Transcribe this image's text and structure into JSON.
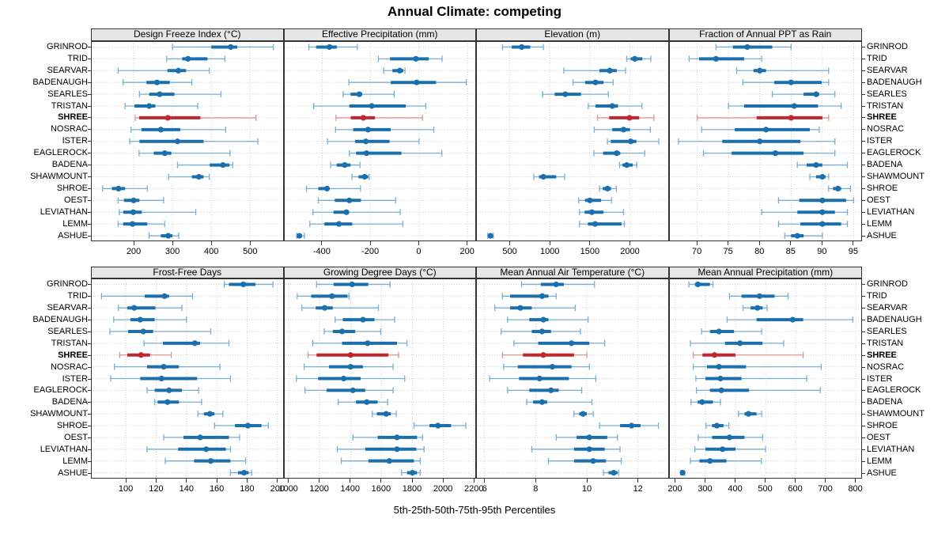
{
  "title": "Annual Climate: competing",
  "footer": "5th-25th-50th-75th-95th Percentiles",
  "colors": {
    "blue": "#1c6fad",
    "blue_light": "#79aed2",
    "red": "#c0282d",
    "red_light": "#dd9595",
    "grid": "#cfcfcf",
    "strip_bg": "#e6e6e6",
    "border": "#333333"
  },
  "sites": [
    "GRINROD",
    "TRID",
    "SEARVAR",
    "BADENAUGH",
    "SEARLES",
    "TRISTAN",
    "SHREE",
    "NOSRAC",
    "ISTER",
    "EAGLEROCK",
    "BADENA",
    "SHAWMOUNT",
    "SHROE",
    "OEST",
    "LEVIATHAN",
    "LEMM",
    "ASHUE"
  ],
  "highlight_site": "SHREE",
  "chart_data": {
    "type": "dotplot-percentiles",
    "percentile_labels": [
      "5th",
      "25th",
      "50th",
      "75th",
      "95th"
    ],
    "panels": [
      {
        "title": "Design Freeze Index (°C)",
        "row": 0,
        "col": 0,
        "domain": [
          90,
          586
        ],
        "ticks": [
          200,
          300,
          400,
          500
        ],
        "values": [
          [
            300,
            400,
            450,
            467,
            560
          ],
          [
            285,
            325,
            340,
            390,
            435
          ],
          [
            160,
            287,
            315,
            335,
            395
          ],
          [
            173,
            233,
            260,
            293,
            350
          ],
          [
            215,
            240,
            267,
            305,
            425
          ],
          [
            178,
            202,
            240,
            256,
            365
          ],
          [
            204,
            214,
            288,
            372,
            515
          ],
          [
            193,
            220,
            270,
            320,
            437
          ],
          [
            190,
            215,
            313,
            380,
            520
          ],
          [
            214,
            252,
            280,
            297,
            448
          ],
          [
            313,
            396,
            430,
            447,
            455
          ],
          [
            290,
            350,
            368,
            380,
            395
          ],
          [
            120,
            144,
            161,
            178,
            235
          ],
          [
            160,
            175,
            200,
            215,
            277
          ],
          [
            163,
            173,
            199,
            221,
            360
          ],
          [
            160,
            173,
            197,
            235,
            280
          ],
          [
            240,
            270,
            289,
            300,
            316
          ]
        ]
      },
      {
        "title": "Effective Precipitation (mm)",
        "row": 0,
        "col": 1,
        "domain": [
          -558,
          237
        ],
        "ticks": [
          -400,
          -200,
          0,
          200
        ],
        "values": [
          [
            -455,
            -425,
            -370,
            -340,
            -255
          ],
          [
            -168,
            -120,
            -13,
            40,
            95
          ],
          [
            -146,
            -110,
            -80,
            -65,
            -58
          ],
          [
            -290,
            -117,
            -10,
            70,
            195
          ],
          [
            -313,
            -283,
            -247,
            -235,
            -103
          ],
          [
            -435,
            -288,
            -195,
            -55,
            28
          ],
          [
            -343,
            -282,
            -230,
            -182,
            14
          ],
          [
            -345,
            -272,
            -211,
            -117,
            61
          ],
          [
            -378,
            -264,
            -220,
            -122,
            0
          ],
          [
            -288,
            -260,
            -217,
            -73,
            94
          ],
          [
            -365,
            -340,
            -307,
            -283,
            -244
          ],
          [
            -277,
            -250,
            -225,
            -210,
            -206
          ],
          [
            -465,
            -416,
            -380,
            -370,
            -242
          ],
          [
            -416,
            -348,
            -288,
            -240,
            -97
          ],
          [
            -438,
            -353,
            -300,
            -290,
            -78
          ],
          [
            -451,
            -391,
            -331,
            -276,
            -67
          ],
          [
            -505,
            -498,
            -494,
            -486,
            -473
          ]
        ]
      },
      {
        "title": "Elevation (m)",
        "row": 0,
        "col": 2,
        "domain": [
          80,
          2483
        ],
        "ticks": [
          500,
          1000,
          1500,
          2000
        ],
        "values": [
          [
            410,
            525,
            650,
            755,
            920
          ],
          [
            1960,
            2010,
            2060,
            2155,
            2260
          ],
          [
            1175,
            1620,
            1748,
            1835,
            1945
          ],
          [
            1290,
            1440,
            1570,
            1670,
            1790
          ],
          [
            910,
            1060,
            1193,
            1390,
            1730
          ],
          [
            1480,
            1570,
            1780,
            1850,
            2150
          ],
          [
            1595,
            1740,
            1995,
            2115,
            2300
          ],
          [
            1555,
            1780,
            1920,
            2000,
            2255
          ],
          [
            1720,
            1760,
            2010,
            2080,
            2360
          ],
          [
            1550,
            1665,
            1835,
            1880,
            2185
          ],
          [
            1870,
            1905,
            1960,
            2035,
            2085
          ],
          [
            800,
            865,
            920,
            1080,
            1185
          ],
          [
            1620,
            1660,
            1720,
            1765,
            1830
          ],
          [
            1360,
            1440,
            1500,
            1640,
            1770
          ],
          [
            1370,
            1435,
            1525,
            1670,
            1920
          ],
          [
            1370,
            1475,
            1565,
            1895,
            1930
          ],
          [
            225,
            245,
            260,
            275,
            295
          ]
        ]
      },
      {
        "title": "Fraction of Annual PPT as Rain",
        "row": 0,
        "col": 3,
        "domain": [
          65.5,
          96.4
        ],
        "ticks": [
          70,
          75,
          80,
          85,
          90,
          95
        ],
        "values": [
          [
            73,
            75.7,
            78,
            82,
            85
          ],
          [
            68.7,
            70.3,
            73,
            77.5,
            80.3
          ],
          [
            76.3,
            79,
            80,
            81,
            91
          ],
          [
            77.3,
            82.3,
            85,
            89.9,
            91
          ],
          [
            82,
            87,
            89,
            89.5,
            92
          ],
          [
            75,
            77.5,
            85.5,
            89.3,
            93
          ],
          [
            70,
            79.5,
            85,
            90,
            91
          ],
          [
            70.7,
            76,
            81,
            88,
            89.5
          ],
          [
            67,
            74,
            80,
            86.5,
            92
          ],
          [
            71,
            75.5,
            82.5,
            87,
            92
          ],
          [
            86,
            87.5,
            89,
            90,
            94
          ],
          [
            88,
            89,
            90,
            90.5,
            91
          ],
          [
            91,
            91.7,
            92.5,
            93,
            94.5
          ],
          [
            83,
            86.3,
            90,
            93.8,
            95
          ],
          [
            80.3,
            86,
            90,
            92,
            94
          ],
          [
            83,
            86.5,
            90,
            93,
            94
          ],
          [
            84,
            85,
            86,
            87,
            90
          ]
        ]
      },
      {
        "title": "Frost-Free Days",
        "row": 1,
        "col": 0,
        "domain": [
          77,
          204
        ],
        "ticks": [
          100,
          120,
          140,
          160,
          180,
          200
        ],
        "values": [
          [
            165,
            168,
            177.5,
            185.5,
            197
          ],
          [
            84,
            112.5,
            125.5,
            128.5,
            144
          ],
          [
            95,
            101,
            105.5,
            119.5,
            137
          ],
          [
            92,
            103,
            109.5,
            119,
            140
          ],
          [
            89.5,
            101.5,
            111.5,
            118,
            156
          ],
          [
            112,
            124.5,
            145.5,
            149,
            168
          ],
          [
            96,
            101,
            110,
            116,
            130
          ],
          [
            92.5,
            114,
            125,
            135,
            162
          ],
          [
            90,
            109.5,
            123.5,
            147,
            169
          ],
          [
            114,
            119,
            128.5,
            137,
            148
          ],
          [
            119,
            121,
            127.5,
            135,
            150
          ],
          [
            147.5,
            151.5,
            155.5,
            158.5,
            164
          ],
          [
            158.5,
            172,
            180.5,
            189.5,
            194
          ],
          [
            125,
            138,
            149,
            168,
            175
          ],
          [
            114,
            134.5,
            153,
            166,
            169
          ],
          [
            126,
            145,
            156,
            169,
            179
          ],
          [
            169,
            174,
            178,
            181,
            183
          ]
        ]
      },
      {
        "title": "Growing Degree Days (°C)",
        "row": 1,
        "col": 1,
        "domain": [
          969,
          2214
        ],
        "ticks": [
          1000,
          1200,
          1400,
          1600,
          1800,
          2000,
          2200
        ],
        "values": [
          [
            1180,
            1290,
            1410,
            1515,
            1655
          ],
          [
            1055,
            1145,
            1280,
            1380,
            1390
          ],
          [
            1085,
            1175,
            1233,
            1285,
            1580
          ],
          [
            1300,
            1350,
            1480,
            1555,
            1685
          ],
          [
            1230,
            1285,
            1345,
            1430,
            1595
          ],
          [
            1155,
            1345,
            1510,
            1700,
            1765
          ],
          [
            1125,
            1180,
            1400,
            1645,
            1710
          ],
          [
            1100,
            1260,
            1400,
            1480,
            1675
          ],
          [
            1050,
            1190,
            1355,
            1465,
            1750
          ],
          [
            1105,
            1245,
            1415,
            1495,
            1675
          ],
          [
            1320,
            1435,
            1505,
            1575,
            1640
          ],
          [
            1540,
            1570,
            1630,
            1660,
            1695
          ],
          [
            1810,
            1910,
            1965,
            2050,
            2145
          ],
          [
            1415,
            1575,
            1700,
            1830,
            1865
          ],
          [
            1315,
            1495,
            1700,
            1825,
            1875
          ],
          [
            1340,
            1515,
            1650,
            1810,
            1850
          ],
          [
            1730,
            1765,
            1800,
            1830,
            1850
          ]
        ]
      },
      {
        "title": "Mean Annual Air Temperature (°C)",
        "row": 1,
        "col": 2,
        "domain": [
          5.67,
          13.2
        ],
        "ticks": [
          6,
          8,
          10,
          12
        ],
        "values": [
          [
            7.45,
            8.2,
            8.8,
            9.1,
            10.3
          ],
          [
            6.7,
            7.0,
            8.25,
            8.5,
            8.8
          ],
          [
            6.4,
            7.0,
            7.4,
            7.85,
            9.55
          ],
          [
            6.9,
            7.75,
            8.3,
            8.5,
            10.05
          ],
          [
            6.65,
            7.85,
            8.25,
            8.6,
            9.75
          ],
          [
            7.15,
            8.1,
            9.4,
            10.1,
            10.7
          ],
          [
            6.7,
            7.5,
            8.3,
            9.5,
            10.0
          ],
          [
            6.75,
            7.3,
            8.65,
            9.4,
            10.1
          ],
          [
            6.2,
            7.35,
            8.15,
            9.3,
            10.35
          ],
          [
            6.9,
            7.75,
            8.6,
            8.9,
            9.8
          ],
          [
            7.65,
            7.9,
            8.25,
            8.45,
            10.2
          ],
          [
            9.5,
            9.7,
            9.85,
            10.0,
            10.25
          ],
          [
            10.5,
            11.3,
            11.75,
            12.1,
            12.8
          ],
          [
            8.8,
            9.6,
            10.1,
            10.8,
            11.2
          ],
          [
            7.85,
            9.5,
            10.1,
            10.7,
            11.3
          ],
          [
            8.5,
            9.5,
            10.25,
            10.75,
            11.35
          ],
          [
            10.65,
            10.85,
            11.05,
            11.2,
            11.25
          ]
        ]
      },
      {
        "title": "Mean Annual Precipitation (mm)",
        "row": 1,
        "col": 3,
        "domain": [
          179,
          822
        ],
        "ticks": [
          200,
          300,
          400,
          500,
          600,
          700,
          800
        ],
        "values": [
          [
            245,
            265,
            275,
            315,
            325
          ],
          [
            380,
            420,
            480,
            530,
            575
          ],
          [
            425,
            450,
            473,
            490,
            505
          ],
          [
            372,
            470,
            590,
            625,
            790
          ],
          [
            287,
            315,
            345,
            395,
            487
          ],
          [
            250,
            365,
            415,
            490,
            560
          ],
          [
            260,
            290,
            330,
            400,
            625
          ],
          [
            260,
            305,
            345,
            435,
            685
          ],
          [
            268,
            300,
            350,
            420,
            637
          ],
          [
            270,
            315,
            353,
            445,
            682
          ],
          [
            252,
            274,
            289,
            325,
            350
          ],
          [
            410,
            430,
            443,
            470,
            487
          ],
          [
            302,
            322,
            338,
            360,
            378
          ],
          [
            276,
            322,
            380,
            430,
            490
          ],
          [
            265,
            300,
            357,
            400,
            500
          ],
          [
            250,
            280,
            315,
            370,
            486
          ],
          [
            218,
            221,
            224,
            228,
            231
          ]
        ]
      }
    ]
  }
}
